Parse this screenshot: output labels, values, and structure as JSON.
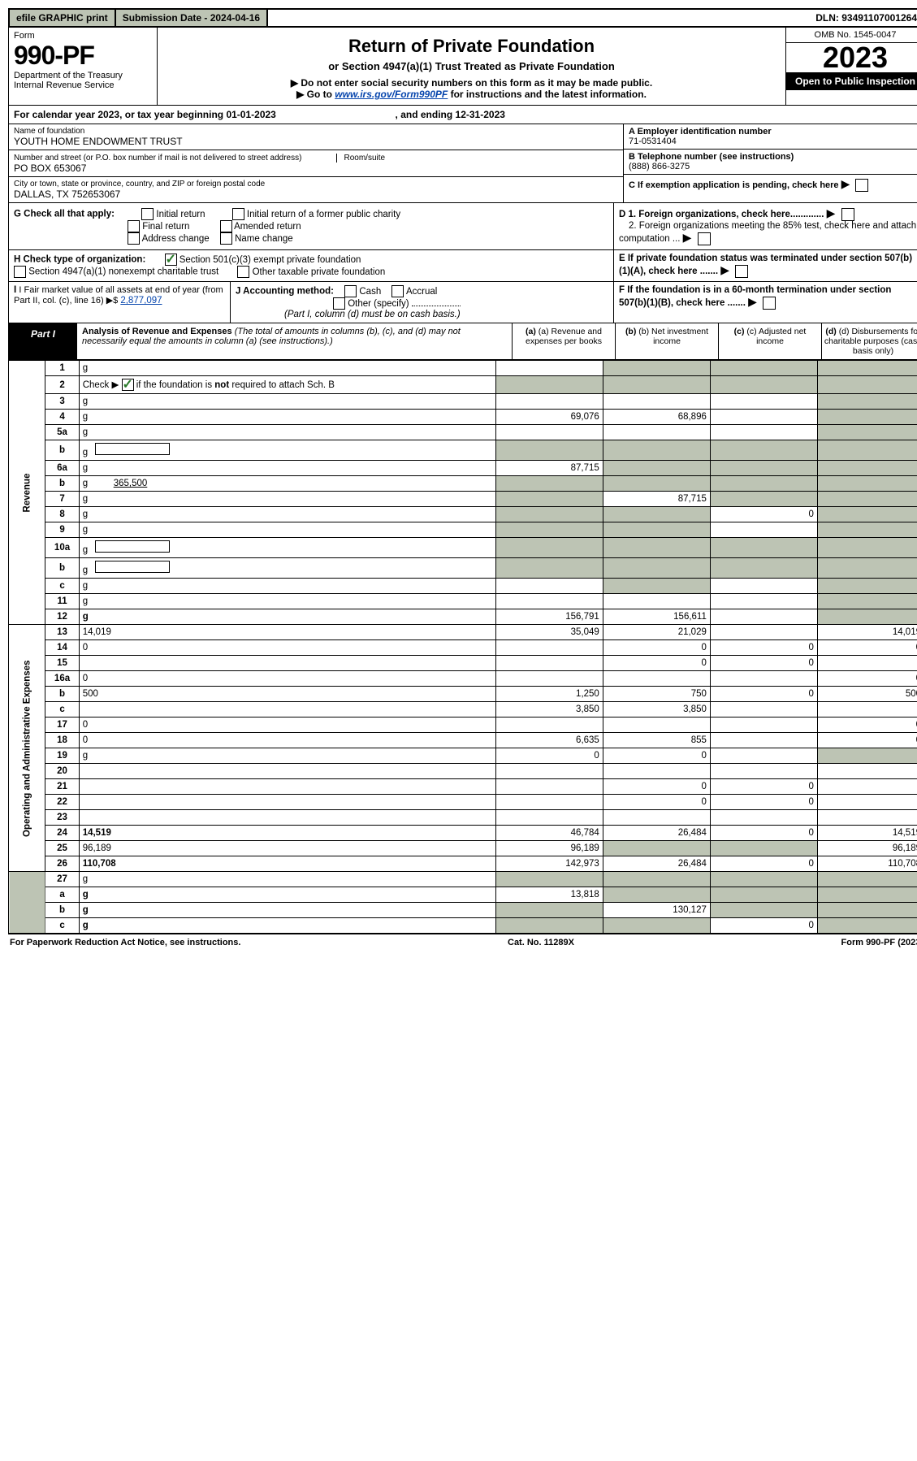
{
  "topbar": {
    "efile": "efile GRAPHIC print",
    "submission": "Submission Date - 2024-04-16",
    "dln": "DLN: 93491107001264"
  },
  "header": {
    "form_label": "Form",
    "form_num": "990-PF",
    "dept1": "Department of the Treasury",
    "dept2": "Internal Revenue Service",
    "title": "Return of Private Foundation",
    "subtitle": "or Section 4947(a)(1) Trust Treated as Private Foundation",
    "instr1": "▶ Do not enter social security numbers on this form as it may be made public.",
    "instr2_pre": "▶ Go to ",
    "instr2_link": "www.irs.gov/Form990PF",
    "instr2_post": " for instructions and the latest information.",
    "omb": "OMB No. 1545-0047",
    "year": "2023",
    "open": "Open to Public Inspection"
  },
  "cal_year": {
    "pre": "For calendar year 2023, or tax year beginning ",
    "begin": "01-01-2023",
    "mid": " , and ending ",
    "end": "12-31-2023"
  },
  "entity": {
    "name_label": "Name of foundation",
    "name": "YOUTH HOME ENDOWMENT TRUST",
    "addr_label": "Number and street (or P.O. box number if mail is not delivered to street address)",
    "room_label": "Room/suite",
    "addr": "PO BOX 653067",
    "city_label": "City or town, state or province, country, and ZIP or foreign postal code",
    "city": "DALLAS, TX  752653067",
    "ein_label": "A Employer identification number",
    "ein": "71-0531404",
    "phone_label": "B Telephone number (see instructions)",
    "phone": "(888) 866-3275",
    "c_label": "C If exemption application is pending, check here"
  },
  "g": {
    "label": "G Check all that apply:",
    "opts": [
      "Initial return",
      "Final return",
      "Address change",
      "Initial return of a former public charity",
      "Amended return",
      "Name change"
    ]
  },
  "d": {
    "d1": "D 1. Foreign organizations, check here.............",
    "d2": "2. Foreign organizations meeting the 85% test, check here and attach computation ..."
  },
  "h": {
    "label": "H Check type of organization:",
    "opt1": "Section 501(c)(3) exempt private foundation",
    "opt2": "Section 4947(a)(1) nonexempt charitable trust",
    "opt3": "Other taxable private foundation"
  },
  "e": "E If private foundation status was terminated under section 507(b)(1)(A), check here .......",
  "i": {
    "label": "I Fair market value of all assets at end of year (from Part II, col. (c), line 16) ▶$ ",
    "val": "2,877,097"
  },
  "j": {
    "label": "J Accounting method:",
    "cash": "Cash",
    "accrual": "Accrual",
    "other": "Other (specify)",
    "note": "(Part I, column (d) must be on cash basis.)"
  },
  "f": "F If the foundation is in a 60-month termination under section 507(b)(1)(B), check here .......",
  "part1": {
    "label": "Part I",
    "title": "Analysis of Revenue and Expenses",
    "title_note": " (The total of amounts in columns (b), (c), and (d) may not necessarily equal the amounts in column (a) (see instructions).)",
    "col_a": "(a) Revenue and expenses per books",
    "col_b": "(b) Net investment income",
    "col_c": "(c) Adjusted net income",
    "col_d": "(d) Disbursements for charitable purposes (cash basis only)"
  },
  "sides": {
    "revenue": "Revenue",
    "expenses": "Operating and Administrative Expenses"
  },
  "rows": [
    {
      "n": "1",
      "d": "g",
      "a": "",
      "b": "g",
      "c": "g"
    },
    {
      "n": "2",
      "d": "g",
      "a": "g",
      "b": "g",
      "c": "g",
      "check": true
    },
    {
      "n": "3",
      "d": "g",
      "a": "",
      "b": "",
      "c": ""
    },
    {
      "n": "4",
      "d": "g",
      "a": "69,076",
      "b": "68,896",
      "c": ""
    },
    {
      "n": "5a",
      "d": "g",
      "a": "",
      "b": "",
      "c": ""
    },
    {
      "n": "b",
      "d": "g",
      "a": "g",
      "b": "g",
      "c": "g",
      "inline": true
    },
    {
      "n": "6a",
      "d": "g",
      "a": "87,715",
      "b": "g",
      "c": "g"
    },
    {
      "n": "b",
      "d": "g",
      "a": "g",
      "b": "g",
      "c": "g",
      "inline": true,
      "inline_val": "365,500"
    },
    {
      "n": "7",
      "d": "g",
      "a": "g",
      "b": "87,715",
      "c": "g"
    },
    {
      "n": "8",
      "d": "g",
      "a": "g",
      "b": "g",
      "c": "0"
    },
    {
      "n": "9",
      "d": "g",
      "a": "g",
      "b": "g",
      "c": ""
    },
    {
      "n": "10a",
      "d": "g",
      "a": "g",
      "b": "g",
      "c": "g",
      "inline": true
    },
    {
      "n": "b",
      "d": "g",
      "a": "g",
      "b": "g",
      "c": "g",
      "inline": true
    },
    {
      "n": "c",
      "d": "g",
      "a": "",
      "b": "g",
      "c": ""
    },
    {
      "n": "11",
      "d": "g",
      "a": "",
      "b": "",
      "c": ""
    },
    {
      "n": "12",
      "d": "g",
      "a": "156,791",
      "b": "156,611",
      "c": "",
      "bold": true
    }
  ],
  "exp_rows": [
    {
      "n": "13",
      "d": "14,019",
      "a": "35,049",
      "b": "21,029",
      "c": ""
    },
    {
      "n": "14",
      "d": "0",
      "a": "",
      "b": "0",
      "c": "0"
    },
    {
      "n": "15",
      "d": "",
      "a": "",
      "b": "0",
      "c": "0"
    },
    {
      "n": "16a",
      "d": "0",
      "a": "",
      "b": "",
      "c": ""
    },
    {
      "n": "b",
      "d": "500",
      "a": "1,250",
      "b": "750",
      "c": "0"
    },
    {
      "n": "c",
      "d": "",
      "a": "3,850",
      "b": "3,850",
      "c": ""
    },
    {
      "n": "17",
      "d": "0",
      "a": "",
      "b": "",
      "c": ""
    },
    {
      "n": "18",
      "d": "0",
      "a": "6,635",
      "b": "855",
      "c": ""
    },
    {
      "n": "19",
      "d": "g",
      "a": "0",
      "b": "0",
      "c": ""
    },
    {
      "n": "20",
      "d": "",
      "a": "",
      "b": "",
      "c": ""
    },
    {
      "n": "21",
      "d": "",
      "a": "",
      "b": "0",
      "c": "0"
    },
    {
      "n": "22",
      "d": "",
      "a": "",
      "b": "0",
      "c": "0"
    },
    {
      "n": "23",
      "d": "",
      "a": "",
      "b": "",
      "c": ""
    },
    {
      "n": "24",
      "d": "14,519",
      "a": "46,784",
      "b": "26,484",
      "c": "0",
      "bold": true
    },
    {
      "n": "25",
      "d": "96,189",
      "a": "96,189",
      "b": "g",
      "c": "g"
    },
    {
      "n": "26",
      "d": "110,708",
      "a": "142,973",
      "b": "26,484",
      "c": "0",
      "bold": true
    }
  ],
  "bottom_rows": [
    {
      "n": "27",
      "d": "g",
      "a": "g",
      "b": "g",
      "c": "g"
    },
    {
      "n": "a",
      "d": "g",
      "a": "13,818",
      "b": "g",
      "c": "g",
      "bold": true
    },
    {
      "n": "b",
      "d": "g",
      "a": "g",
      "b": "130,127",
      "c": "g",
      "bold": true
    },
    {
      "n": "c",
      "d": "g",
      "a": "g",
      "b": "g",
      "c": "0",
      "bold": true
    }
  ],
  "footer": {
    "left": "For Paperwork Reduction Act Notice, see instructions.",
    "mid": "Cat. No. 11289X",
    "right": "Form 990-PF (2023)"
  }
}
